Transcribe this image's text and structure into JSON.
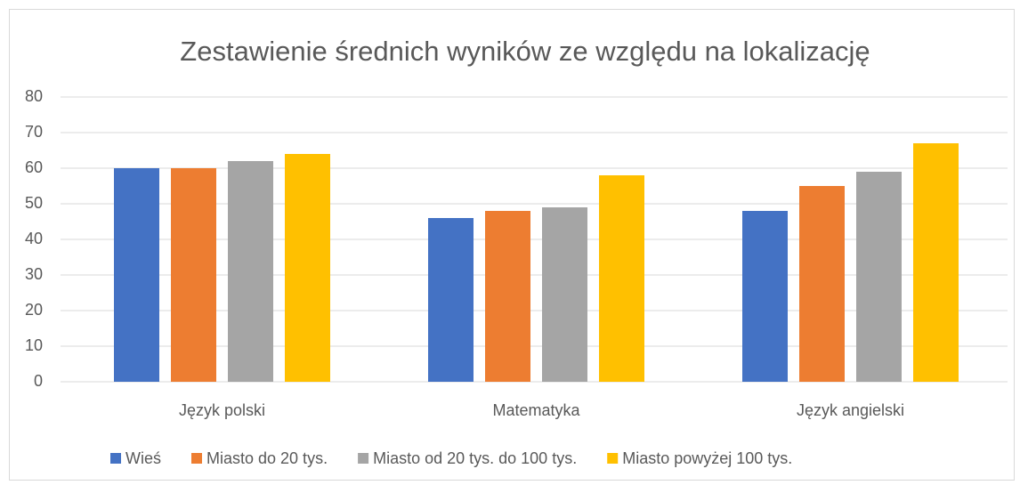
{
  "chart_data": {
    "type": "bar",
    "title": "Zestawienie średnich wyników ze względu na lokalizację",
    "categories": [
      "Język polski",
      "Matematyka",
      "Język angielski"
    ],
    "series": [
      {
        "name": "Wieś",
        "color": "#4472c4",
        "values": [
          60,
          46,
          48
        ]
      },
      {
        "name": "Miasto do 20 tys.",
        "color": "#ed7d31",
        "values": [
          60,
          48,
          55
        ]
      },
      {
        "name": "Miasto od 20 tys. do 100 tys.",
        "color": "#a5a5a5",
        "values": [
          62,
          49,
          59
        ]
      },
      {
        "name": "Miasto powyżej 100 tys.",
        "color": "#ffc000",
        "values": [
          64,
          58,
          67
        ]
      }
    ],
    "ylim": [
      0,
      80
    ],
    "yticks": [
      0,
      10,
      20,
      30,
      40,
      50,
      60,
      70,
      80
    ],
    "grid": true,
    "legend": "bottom"
  }
}
